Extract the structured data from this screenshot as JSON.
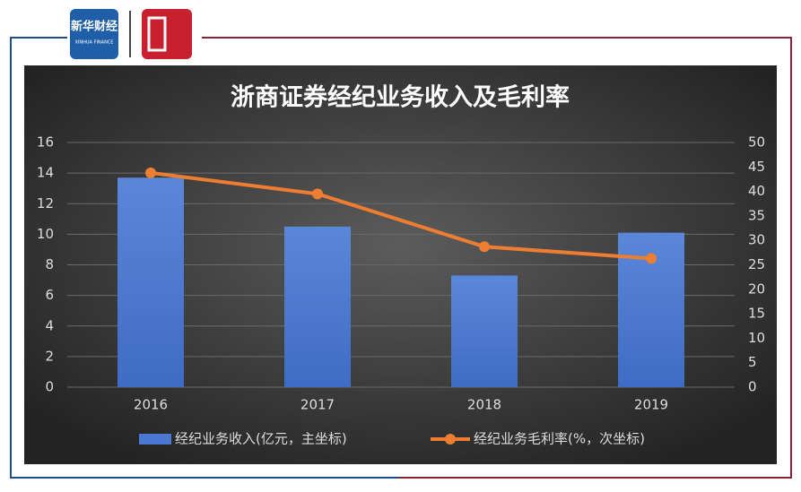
{
  "logos": {
    "name": "新华财经",
    "name_en": "XINHUA FINANCE"
  },
  "chart_data": {
    "type": "bar",
    "title": "浙商证券经纪业务收入及毛利率",
    "categories": [
      "2016",
      "2017",
      "2018",
      "2019"
    ],
    "series": [
      {
        "name": "经纪业务收入(亿元，主坐标)",
        "type": "bar",
        "color": "#4a78d0",
        "values": [
          13.7,
          10.5,
          7.3,
          10.1
        ]
      },
      {
        "name": "经纪业务毛利率(%，次坐标)",
        "type": "line",
        "axis": "y2",
        "color": "#ed7d31",
        "values": [
          43.8,
          39.5,
          28.7,
          26.3
        ]
      }
    ],
    "ylim": [
      0,
      16
    ],
    "yticks": [
      0,
      2,
      4,
      6,
      8,
      10,
      12,
      14,
      16
    ],
    "y2lim": [
      0,
      50
    ],
    "y2ticks": [
      0,
      5,
      10,
      15,
      20,
      25,
      30,
      35,
      40,
      45,
      50
    ],
    "grid": true,
    "legend": "bottom"
  }
}
